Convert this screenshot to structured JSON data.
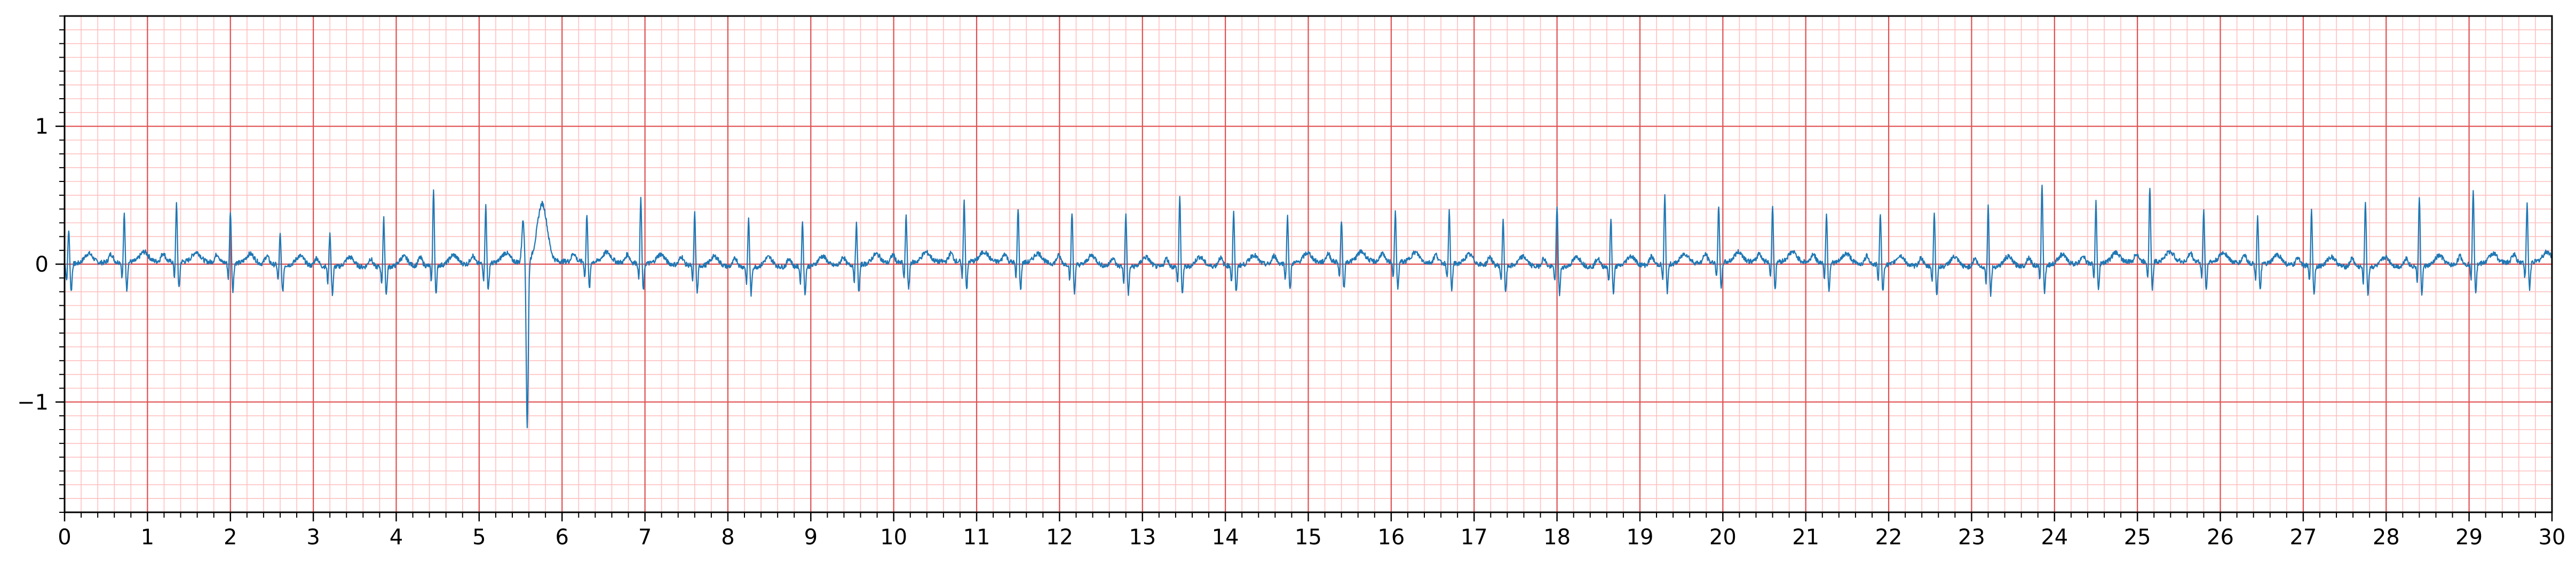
{
  "chart_data": {
    "type": "line",
    "title": "",
    "xlabel": "",
    "ylabel": "",
    "xlim": [
      0,
      30
    ],
    "ylim": [
      -1.8,
      1.8
    ],
    "x_ticks": [
      0,
      1,
      2,
      3,
      4,
      5,
      6,
      7,
      8,
      9,
      10,
      11,
      12,
      13,
      14,
      15,
      16,
      17,
      18,
      19,
      20,
      21,
      22,
      23,
      24,
      25,
      26,
      27,
      28,
      29,
      30
    ],
    "x_tick_labels": [
      "0",
      "1",
      "2",
      "3",
      "4",
      "5",
      "6",
      "7",
      "8",
      "9",
      "10",
      "11",
      "12",
      "13",
      "14",
      "15",
      "16",
      "17",
      "18",
      "19",
      "20",
      "21",
      "22",
      "23",
      "24",
      "25",
      "26",
      "27",
      "28",
      "29",
      "30"
    ],
    "y_ticks": [
      -1,
      0,
      1
    ],
    "y_tick_labels": [
      "−1",
      "0",
      "1"
    ],
    "grid": {
      "major": true,
      "minor": true,
      "major_x_step": 1,
      "minor_x_step": 0.2,
      "major_y_step": 1,
      "minor_y_step": 0.1
    },
    "colors": {
      "signal": "#1f77b4",
      "major_grid": "#e05050",
      "minor_grid": "#ffc0c0",
      "axes": "#000000"
    },
    "beat_times": [
      0.05,
      0.72,
      1.35,
      2.0,
      2.6,
      3.2,
      3.85,
      4.45,
      5.08,
      5.58,
      6.3,
      6.95,
      7.6,
      8.25,
      8.9,
      9.55,
      10.15,
      10.85,
      11.5,
      12.15,
      12.8,
      13.45,
      14.1,
      14.75,
      15.4,
      16.05,
      16.7,
      17.35,
      18.0,
      18.65,
      19.3,
      19.95,
      20.6,
      21.25,
      21.9,
      22.55,
      23.2,
      23.85,
      24.5,
      25.15,
      25.8,
      26.45,
      27.1,
      27.75,
      28.4,
      29.05,
      29.7
    ],
    "r_peak_values": [
      0.25,
      0.35,
      0.42,
      0.38,
      0.22,
      0.25,
      0.35,
      0.55,
      0.42,
      -1.2,
      0.35,
      0.47,
      0.38,
      0.35,
      0.33,
      0.3,
      0.34,
      0.45,
      0.4,
      0.38,
      0.38,
      0.52,
      0.4,
      0.35,
      0.3,
      0.36,
      0.38,
      0.34,
      0.45,
      0.35,
      0.5,
      0.42,
      0.4,
      0.35,
      0.38,
      0.4,
      0.44,
      0.6,
      0.44,
      0.55,
      0.38,
      0.35,
      0.4,
      0.48,
      0.5,
      0.55,
      0.42
    ]
  }
}
